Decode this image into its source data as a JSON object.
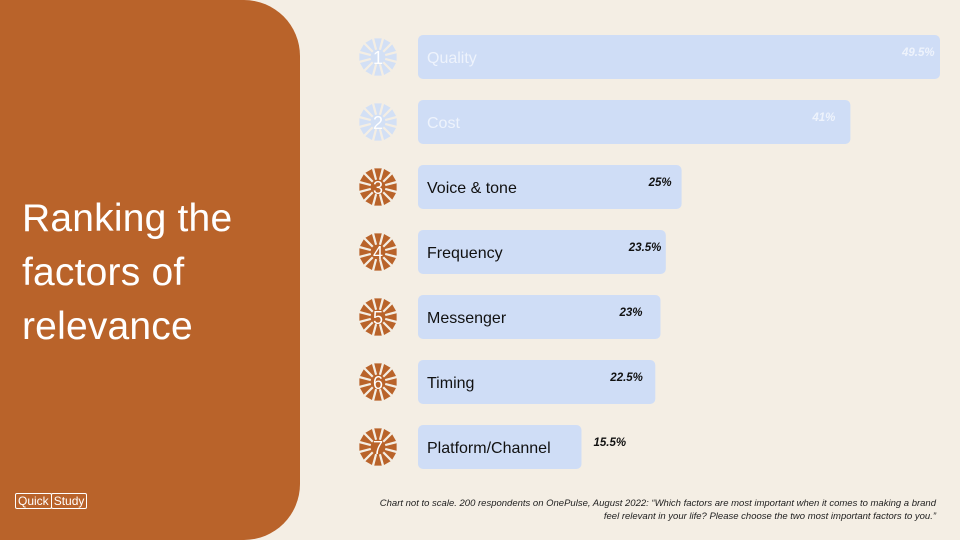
{
  "slide": {
    "title": "Ranking the factors of relevance",
    "brand_left": "Quick",
    "brand_right": "Study",
    "footnote": "Chart not to scale. 200 respondents on OnePulse, August 2022: “Which factors are most important when it comes to making a brand feel relevant in your life? Please choose the two most important factors to you.”"
  },
  "colors": {
    "panel": "#B9632A",
    "background": "#F4EEE4",
    "bar": "#CFDDF6",
    "rank_badge": "#B9632A",
    "rank_badge_faded": "#D3E0F5",
    "text_dark": "#111111",
    "text_faded": "#EEF3FC"
  },
  "icons": {
    "rank_badge": "sunburst-badge-icon"
  },
  "chart_data": {
    "type": "bar",
    "orientation": "horizontal",
    "scale_note": "Chart not to scale.",
    "categories": [
      "Quality",
      "Cost",
      "Voice & tone",
      "Frequency",
      "Messenger",
      "Timing",
      "Platform/Channel"
    ],
    "ranks": [
      "1",
      "2",
      "3",
      "4",
      "5",
      "6",
      "7"
    ],
    "values": [
      49.5,
      41,
      25,
      23.5,
      23,
      22.5,
      15.5
    ],
    "value_labels": [
      "49.5%",
      "41%",
      "25%",
      "23.5%",
      "23%",
      "22.5%",
      "15.5%"
    ],
    "faded": [
      true,
      true,
      false,
      false,
      false,
      false,
      false
    ],
    "title": "",
    "xlabel": "",
    "ylabel": "",
    "grid": false,
    "legend": "none"
  }
}
